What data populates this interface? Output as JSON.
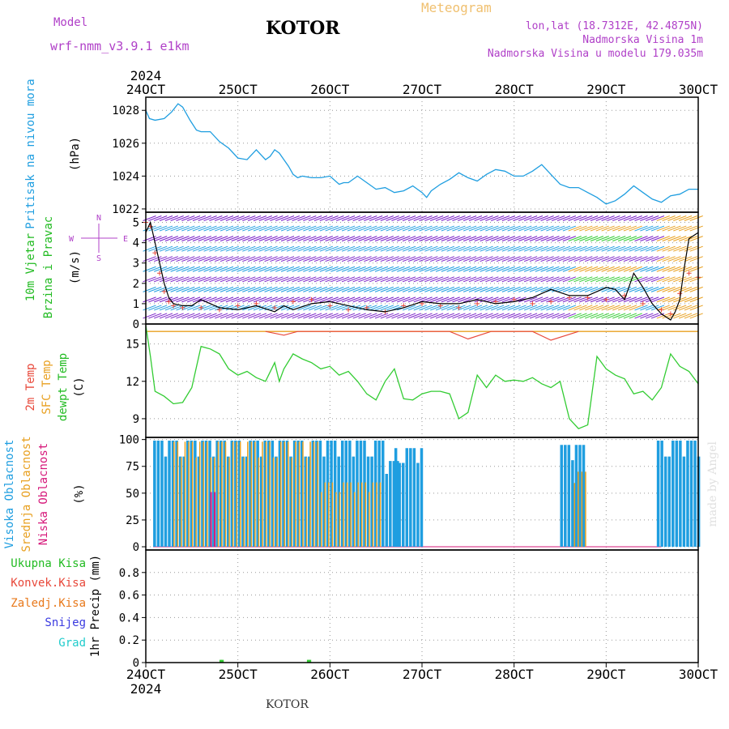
{
  "header": {
    "model_label": "Model",
    "model_name": "wrf-nmm_v3.9.1 e1km",
    "title": "KOTOR",
    "meteogram": "Meteogram",
    "lonlat": "lon,lat (18.7312E, 42.4875N)",
    "elevation": "Nadmorska Visina 1m",
    "model_elevation": "Nadmorska Visina u modelu 179.035m",
    "bottom_title": "KOTOR",
    "credit": "made by Angel"
  },
  "colors": {
    "pressure": "#1f9ee0",
    "wind_speed": "#000000",
    "wind_gust": "#e8483a",
    "dewpoint": "#33cc33",
    "t2m": "#e8483a",
    "sfc_temp": "#e8a020",
    "cloud_high": "#1f9ee0",
    "cloud_mid": "#e8a020",
    "cloud_low": "#d6187a",
    "precip_total": "#33cc33",
    "magenta_label": "#b040c8"
  },
  "chart_data": [
    {
      "type": "line",
      "panel": "pressure",
      "ylabel_left": "Pritisak na nivou mora",
      "unit": "(hPa)",
      "ylim": [
        1021.8,
        1028.8
      ],
      "yticks": [
        1022,
        1024,
        1026,
        1028
      ],
      "grid": true,
      "x_year": "2024",
      "x_ticks": [
        "24OCT",
        "25OCT",
        "26OCT",
        "27OCT",
        "28OCT",
        "29OCT",
        "30OCT"
      ],
      "x_range_days": [
        0,
        6
      ],
      "series": [
        {
          "x": [
            0,
            0.04,
            0.1,
            0.2,
            0.28,
            0.35,
            0.4,
            0.48,
            0.55,
            0.6,
            0.7,
            0.8,
            0.9,
            1.0,
            1.1,
            1.2,
            1.3,
            1.35,
            1.4,
            1.45,
            1.5,
            1.55,
            1.6,
            1.65,
            1.7,
            1.8,
            1.9,
            2.0,
            2.1,
            2.15,
            2.2,
            2.3,
            2.4,
            2.5,
            2.6,
            2.7,
            2.8,
            2.9,
            3.0,
            3.05,
            3.1,
            3.2,
            3.3,
            3.4,
            3.5,
            3.6,
            3.7,
            3.8,
            3.9,
            4.0,
            4.1,
            4.2,
            4.3,
            4.4,
            4.5,
            4.6,
            4.7,
            4.8,
            4.9,
            5.0,
            5.1,
            5.2,
            5.3,
            5.4,
            5.5,
            5.6,
            5.7,
            5.8,
            5.9,
            6.0
          ],
          "values": [
            1028.0,
            1027.5,
            1027.4,
            1027.5,
            1027.9,
            1028.4,
            1028.2,
            1027.4,
            1026.8,
            1026.7,
            1026.7,
            1026.1,
            1025.7,
            1025.1,
            1025.0,
            1025.6,
            1025.0,
            1025.2,
            1025.6,
            1025.4,
            1025.0,
            1024.6,
            1024.1,
            1023.9,
            1024.0,
            1023.9,
            1023.9,
            1024.0,
            1023.5,
            1023.6,
            1023.6,
            1024.0,
            1023.6,
            1023.2,
            1023.3,
            1023.0,
            1023.1,
            1023.4,
            1023.0,
            1022.7,
            1023.1,
            1023.5,
            1023.8,
            1024.2,
            1023.9,
            1023.7,
            1024.1,
            1024.4,
            1024.3,
            1024.0,
            1024.0,
            1024.3,
            1024.7,
            1024.1,
            1023.5,
            1023.3,
            1023.3,
            1023.0,
            1022.7,
            1022.3,
            1022.5,
            1022.9,
            1023.4,
            1023.0,
            1022.6,
            1022.4,
            1022.8,
            1022.9,
            1023.2,
            1023.2
          ]
        }
      ]
    },
    {
      "type": "line",
      "panel": "wind",
      "ylabel_left": [
        "10m Vjetar",
        "Brzina i Pravac"
      ],
      "unit": "(m/s)",
      "compass": [
        "N",
        "S",
        "W",
        "E"
      ],
      "ylim": [
        0,
        5.5
      ],
      "yticks": [
        0,
        1,
        2,
        3,
        4,
        5
      ],
      "grid": true,
      "series": [
        {
          "name_key": "speed",
          "x": [
            0,
            0.05,
            0.1,
            0.15,
            0.2,
            0.25,
            0.3,
            0.4,
            0.5,
            0.6,
            0.8,
            1.0,
            1.2,
            1.4,
            1.5,
            1.6,
            1.8,
            2.0,
            2.2,
            2.4,
            2.6,
            2.8,
            3.0,
            3.2,
            3.4,
            3.6,
            3.8,
            4.0,
            4.2,
            4.4,
            4.6,
            4.8,
            4.9,
            5.0,
            5.1,
            5.2,
            5.3,
            5.4,
            5.5,
            5.6,
            5.7,
            5.75,
            5.8,
            5.85,
            5.9,
            6.0
          ],
          "values": [
            4.5,
            5.0,
            4.0,
            3.0,
            2.0,
            1.3,
            1.0,
            0.9,
            0.9,
            1.2,
            0.8,
            0.7,
            0.9,
            0.6,
            0.9,
            0.7,
            1.0,
            1.1,
            0.9,
            0.7,
            0.6,
            0.8,
            1.1,
            1.0,
            1.0,
            1.2,
            1.0,
            1.1,
            1.3,
            1.7,
            1.4,
            1.4,
            1.6,
            1.8,
            1.7,
            1.2,
            2.5,
            1.8,
            1.0,
            0.5,
            0.2,
            0.6,
            1.2,
            2.8,
            4.2,
            4.5
          ]
        },
        {
          "name_key": "gust",
          "x": [
            0,
            0.05,
            0.1,
            0.15,
            0.2,
            0.25,
            0.3,
            0.4,
            0.6,
            0.8,
            1.0,
            1.2,
            1.4,
            1.6,
            1.8,
            2.0,
            2.2,
            2.4,
            2.6,
            2.8,
            3.0,
            3.2,
            3.4,
            3.6,
            3.8,
            4.0,
            4.2,
            4.4,
            4.6,
            4.8,
            5.0,
            5.2,
            5.4,
            5.6,
            5.7,
            5.8,
            5.9,
            6.0
          ],
          "values": [
            5.0,
            4.8,
            3.5,
            2.5,
            1.6,
            1.1,
            0.9,
            0.8,
            0.8,
            0.7,
            0.9,
            1.0,
            0.8,
            1.1,
            1.2,
            0.9,
            0.7,
            0.8,
            0.6,
            0.9,
            1.0,
            0.9,
            0.8,
            1.0,
            1.1,
            1.2,
            1.0,
            1.1,
            1.3,
            1.3,
            1.2,
            1.4,
            1.0,
            0.7,
            0.5,
            1.5,
            2.5,
            2.3
          ]
        }
      ]
    },
    {
      "type": "line",
      "panel": "temperature",
      "ylabel_left": [
        "2m Temp",
        "SFC Temp",
        "dewpt Temp"
      ],
      "unit": "(C)",
      "ylim": [
        7.5,
        16.6
      ],
      "yticks": [
        9,
        12,
        15
      ],
      "grid": true,
      "series": [
        {
          "name_key": "dewpoint",
          "x": [
            0,
            0.05,
            0.1,
            0.2,
            0.3,
            0.4,
            0.5,
            0.6,
            0.7,
            0.8,
            0.9,
            1.0,
            1.1,
            1.2,
            1.3,
            1.4,
            1.45,
            1.5,
            1.6,
            1.7,
            1.8,
            1.9,
            2.0,
            2.1,
            2.2,
            2.3,
            2.4,
            2.5,
            2.6,
            2.7,
            2.8,
            2.9,
            3.0,
            3.1,
            3.2,
            3.3,
            3.4,
            3.5,
            3.6,
            3.7,
            3.8,
            3.9,
            4.0,
            4.1,
            4.2,
            4.3,
            4.4,
            4.5,
            4.6,
            4.7,
            4.8,
            4.9,
            5.0,
            5.1,
            5.2,
            5.3,
            5.4,
            5.5,
            5.6,
            5.7,
            5.8,
            5.9,
            6.0
          ],
          "values": [
            16.5,
            14.0,
            11.2,
            10.8,
            10.2,
            10.3,
            11.5,
            14.8,
            14.6,
            14.2,
            13.0,
            12.5,
            12.8,
            12.3,
            12.0,
            13.5,
            12.0,
            13.0,
            14.2,
            13.8,
            13.5,
            13.0,
            13.2,
            12.5,
            12.8,
            12.0,
            11.0,
            10.5,
            12.0,
            13.0,
            10.6,
            10.5,
            11.0,
            11.2,
            11.2,
            11.0,
            9.0,
            9.5,
            12.5,
            11.5,
            12.5,
            12.0,
            12.1,
            12.0,
            12.3,
            11.8,
            11.5,
            12.0,
            9.0,
            8.2,
            8.5,
            14.0,
            13.0,
            12.5,
            12.2,
            11.0,
            11.2,
            10.5,
            11.5,
            14.2,
            13.2,
            12.8,
            11.8
          ]
        },
        {
          "name_key": "sfc",
          "x": [
            0,
            6.0
          ],
          "values": [
            16.0,
            16.0
          ]
        },
        {
          "name_key": "t2m",
          "x": [
            1.3,
            1.5,
            1.65,
            3.3,
            3.5,
            3.75,
            4.2,
            4.4,
            4.7
          ],
          "values": [
            16.0,
            15.7,
            16.0,
            16.0,
            15.4,
            16.0,
            16.0,
            15.3,
            16.0
          ]
        }
      ]
    },
    {
      "type": "bar",
      "panel": "cloud",
      "ylabel_left": [
        "Visoka Oblacnost",
        "Srednja Oblacnost",
        "Niska Oblacnost"
      ],
      "unit": "(%)",
      "ylim": [
        -3,
        102
      ],
      "yticks": [
        0,
        25,
        50,
        75,
        100
      ],
      "grid": true,
      "high_segments": [
        {
          "start": 0.08,
          "end": 2.6,
          "value": 99
        },
        {
          "start": 2.6,
          "end": 2.75,
          "value": 80
        },
        {
          "start": 2.7,
          "end": 3.0,
          "value": 92
        },
        {
          "start": 4.5,
          "end": 4.75,
          "value": 95
        },
        {
          "start": 5.55,
          "end": 6.0,
          "value": 99
        }
      ],
      "mid_segments": [
        {
          "start": 0.3,
          "end": 1.9,
          "value": 98
        },
        {
          "start": 1.9,
          "end": 2.55,
          "value": 60
        },
        {
          "start": 4.65,
          "end": 4.8,
          "value": 70
        }
      ],
      "low_segments": [
        {
          "start": 0.7,
          "end": 0.75,
          "value": 60
        }
      ]
    },
    {
      "type": "bar",
      "panel": "precip",
      "ylabel_left": [
        "Ukupna Kisa",
        "Konvek.Kisa",
        "Zaledj.Kisa",
        "Snijeg",
        "Grad"
      ],
      "unit": "1hr Precip (mm)",
      "ylim": [
        0,
        1.0
      ],
      "yticks": [
        0,
        0.2,
        0.4,
        0.6,
        0.8
      ],
      "grid": true,
      "total": [
        {
          "x": 0.8,
          "value": 0.01
        },
        {
          "x": 0.82,
          "value": 0.01
        },
        {
          "x": 1.75,
          "value": 0.01
        },
        {
          "x": 1.77,
          "value": 0.01
        }
      ]
    }
  ]
}
